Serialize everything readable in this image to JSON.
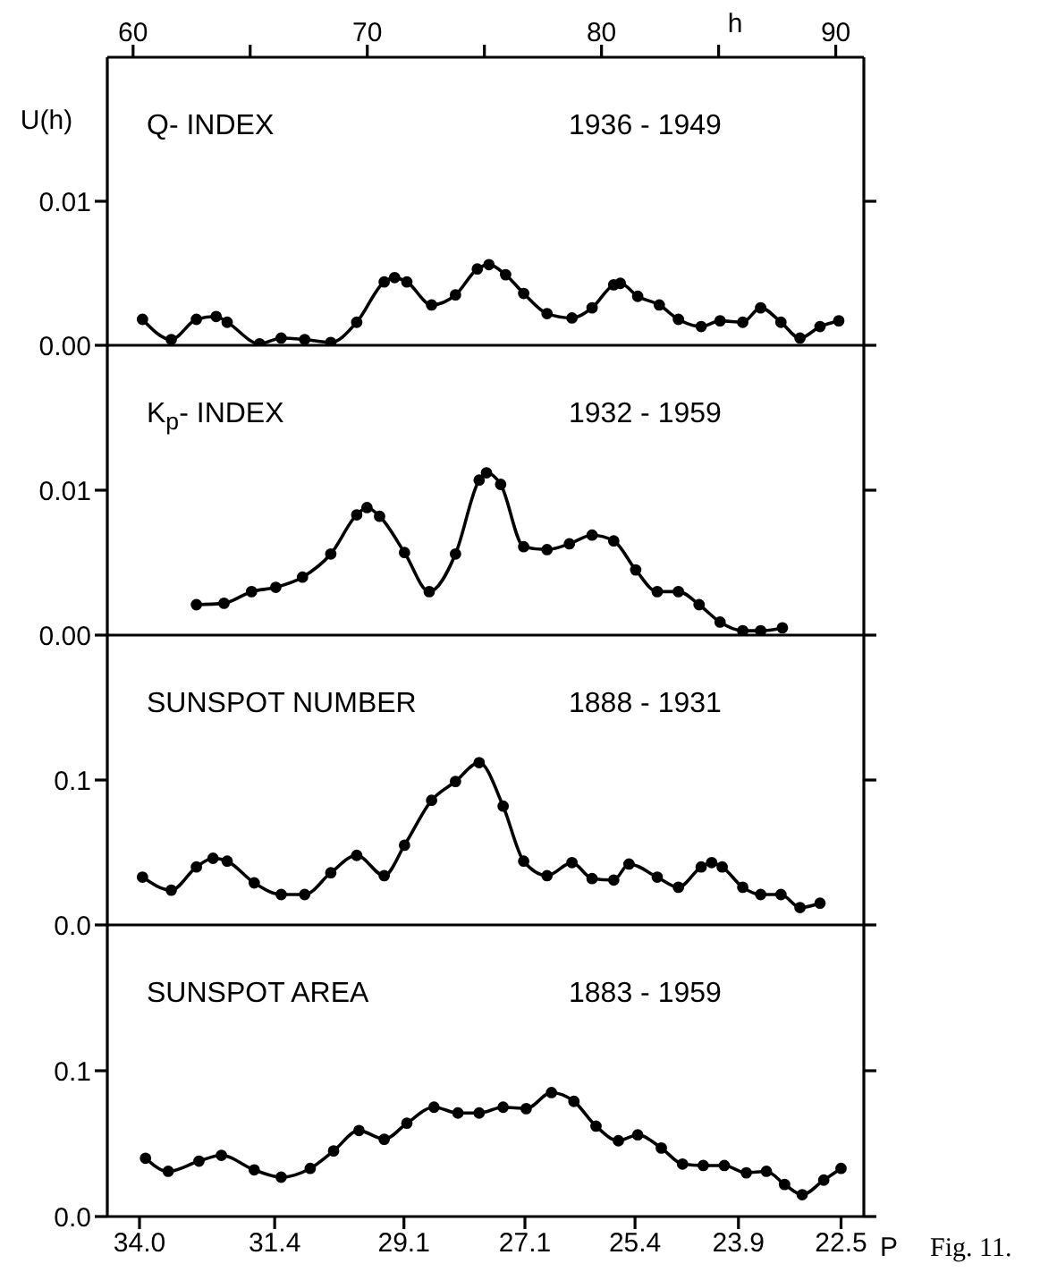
{
  "chart_data": [
    {
      "type": "line",
      "title": "Q- INDEX",
      "subtitle": "1936 - 1949",
      "ylabel": "U(h)",
      "color": "#000000",
      "marker": "circle",
      "line_style": "solid",
      "tick_labels": "y",
      "x": [
        33.94,
        33.37,
        32.88,
        32.5,
        32.29,
        31.68,
        31.28,
        30.85,
        30.38,
        29.92,
        29.44,
        29.26,
        29.05,
        28.63,
        28.23,
        27.87,
        27.68,
        27.41,
        27.12,
        26.75,
        26.36,
        26.05,
        25.72,
        25.62,
        25.36,
        25.04,
        24.76,
        24.43,
        24.16,
        23.84,
        23.59,
        23.31,
        23.05,
        22.78,
        22.53
      ],
      "values": [
        0.0018,
        0.0004,
        0.0018,
        0.002,
        0.0016,
        0.0001,
        0.0005,
        0.0004,
        0.0002,
        0.0016,
        0.0044,
        0.0047,
        0.0044,
        0.0028,
        0.0035,
        0.0053,
        0.0056,
        0.0049,
        0.0036,
        0.0022,
        0.0019,
        0.0026,
        0.0042,
        0.0043,
        0.0034,
        0.0028,
        0.0018,
        0.0013,
        0.0017,
        0.0016,
        0.0026,
        0.0016,
        0.0005,
        0.0013,
        0.0017
      ],
      "xlim": [
        34.65,
        22.2
      ],
      "ylim": [
        0,
        0.02
      ],
      "yticks": [
        {
          "value": 0,
          "label": "0.00"
        },
        {
          "value": 0.01,
          "label": "0.01"
        }
      ],
      "log": "x",
      "x2lim": [
        58.9,
        91.2
      ],
      "x2label": "h",
      "x2ticks": [
        60,
        {
          "value": 65,
          "label": null
        },
        70,
        {
          "value": 75,
          "label": null
        },
        80,
        {
          "value": 85,
          "label": null
        },
        90
      ]
    },
    {
      "type": "line",
      "title": "K$_{p}$- INDEX",
      "subtitle": "1932 - 1959",
      "color": "#000000",
      "marker": "circle",
      "line_style": "solid",
      "tick_labels": "y",
      "x": [
        32.88,
        32.35,
        31.83,
        31.38,
        30.89,
        30.38,
        29.92,
        29.74,
        29.52,
        29.09,
        28.67,
        28.23,
        27.84,
        27.72,
        27.49,
        27.12,
        26.75,
        26.4,
        26.05,
        25.72,
        25.39,
        25.07,
        24.76,
        24.46,
        24.16,
        23.84,
        23.59,
        23.29
      ],
      "values": [
        0.0021,
        0.0022,
        0.003,
        0.0033,
        0.004,
        0.0056,
        0.0083,
        0.0088,
        0.0082,
        0.0057,
        0.003,
        0.0056,
        0.0107,
        0.0112,
        0.0104,
        0.0061,
        0.0059,
        0.0063,
        0.0069,
        0.0065,
        0.0045,
        0.003,
        0.003,
        0.0021,
        0.0009,
        0.0003,
        0.0003,
        0.0005
      ],
      "xlim": [
        34.65,
        22.2
      ],
      "ylim": [
        0,
        0.02
      ],
      "yticks": [
        {
          "value": 0,
          "label": "0.00"
        },
        {
          "value": 0.01,
          "label": "0.01"
        }
      ],
      "log": "x"
    },
    {
      "type": "line",
      "title": "SUNSPOT NUMBER",
      "subtitle": "1888 - 1931",
      "color": "#000000",
      "marker": "circle",
      "line_style": "solid",
      "tick_labels": "y",
      "x": [
        33.94,
        33.37,
        32.88,
        32.56,
        32.29,
        31.78,
        31.28,
        30.85,
        30.38,
        29.92,
        29.44,
        29.09,
        28.63,
        28.23,
        27.84,
        27.45,
        27.12,
        26.75,
        26.36,
        26.05,
        25.72,
        25.49,
        25.07,
        24.76,
        24.43,
        24.28,
        24.13,
        23.84,
        23.59,
        23.31,
        23.05,
        22.78
      ],
      "values": [
        0.033,
        0.024,
        0.04,
        0.046,
        0.044,
        0.029,
        0.021,
        0.021,
        0.036,
        0.048,
        0.034,
        0.055,
        0.086,
        0.099,
        0.112,
        0.082,
        0.044,
        0.034,
        0.043,
        0.032,
        0.031,
        0.042,
        0.033,
        0.026,
        0.04,
        0.043,
        0.04,
        0.026,
        0.021,
        0.021,
        0.012,
        0.015
      ],
      "xlim": [
        34.65,
        22.2
      ],
      "ylim": [
        0,
        0.2
      ],
      "yticks": [
        {
          "value": 0,
          "label": "0.0"
        },
        {
          "value": 0.1,
          "label": "0.1"
        }
      ],
      "log": "x"
    },
    {
      "type": "line",
      "title": "SUNSPOT AREA",
      "subtitle": "1883 - 1959",
      "xlabel": "P",
      "color": "#000000",
      "marker": "circle",
      "line_style": "solid",
      "annotations": [
        "Fig. 11."
      ],
      "x": [
        33.88,
        33.43,
        32.83,
        32.4,
        31.78,
        31.28,
        30.75,
        30.33,
        29.88,
        29.44,
        29.05,
        28.59,
        28.19,
        27.84,
        27.45,
        27.08,
        26.68,
        26.33,
        25.99,
        25.65,
        25.36,
        25.01,
        24.7,
        24.4,
        24.1,
        23.79,
        23.51,
        23.26,
        23.02,
        22.73,
        22.5
      ],
      "values": [
        0.04,
        0.031,
        0.038,
        0.042,
        0.032,
        0.027,
        0.033,
        0.045,
        0.059,
        0.053,
        0.064,
        0.075,
        0.071,
        0.071,
        0.075,
        0.074,
        0.085,
        0.079,
        0.062,
        0.052,
        0.056,
        0.047,
        0.036,
        0.035,
        0.035,
        0.03,
        0.031,
        0.022,
        0.015,
        0.025,
        0.033
      ],
      "xlim": [
        34.65,
        22.2
      ],
      "ylim": [
        0,
        0.2
      ],
      "yticks": [
        {
          "value": 0,
          "label": "0.0"
        },
        {
          "value": 0.1,
          "label": "0.1"
        }
      ],
      "xticks": [
        {
          "value": 34.0,
          "label": "34.0"
        },
        31.4,
        29.1,
        27.1,
        25.4,
        23.9,
        22.5
      ],
      "log": "x"
    }
  ]
}
